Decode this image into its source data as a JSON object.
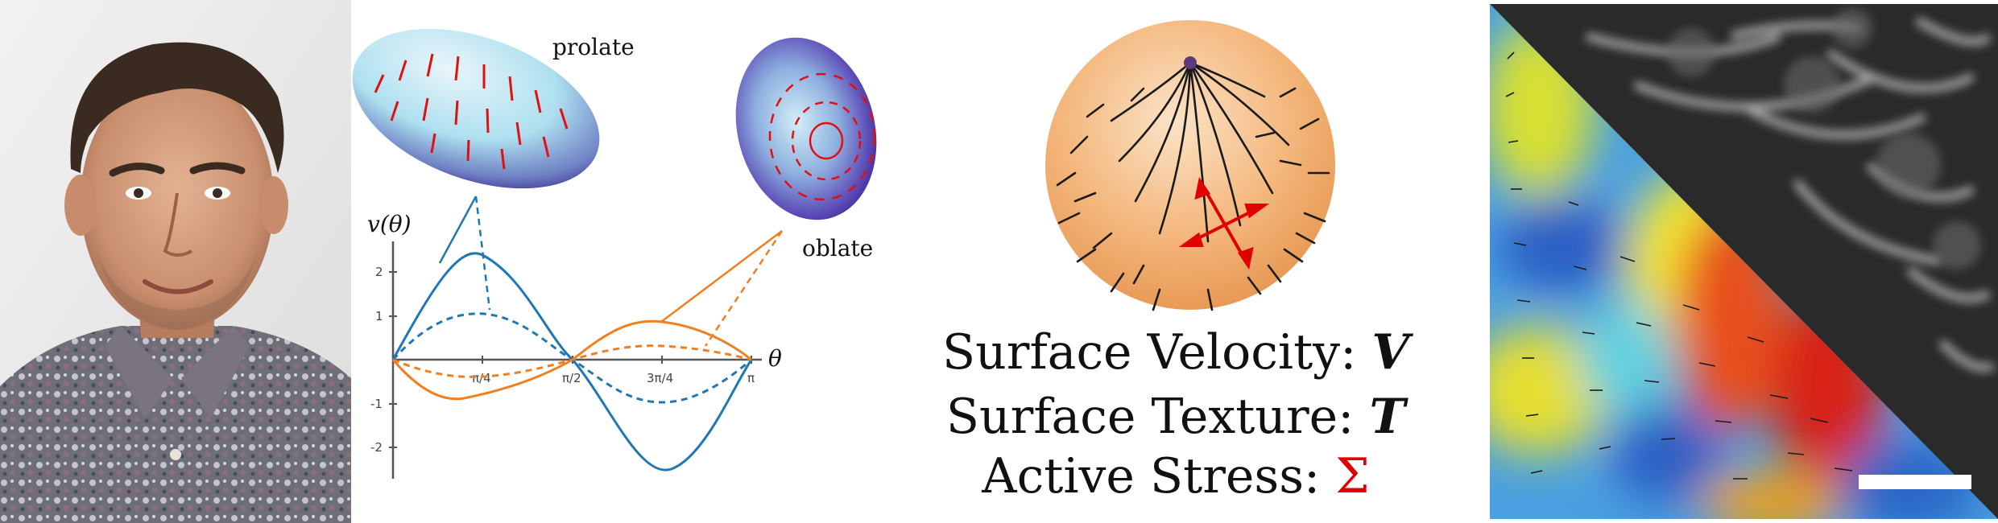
{
  "plot": {
    "label_prolate": "prolate",
    "label_oblate": "oblate",
    "y_axis_label": "v(θ)",
    "x_axis_label": "θ",
    "y_ticks": [
      "2",
      "1",
      "-1",
      "-2"
    ],
    "x_ticks": [
      "π/4",
      "π/2",
      "3π/4",
      "π"
    ],
    "colors": {
      "blue": "#1f77b4",
      "orange": "#f07f1e",
      "arrows": "#e01010"
    }
  },
  "sphere": {
    "line1_label": "Surface Velocity:",
    "line1_symbol": "V",
    "line2_label": "Surface Texture:",
    "line2_symbol": "T",
    "line3_label": "Active Stress:",
    "line3_symbol": "Σ",
    "colors": {
      "sphere": "#f3b57d",
      "stress": "#e00000"
    }
  },
  "heatmap": {
    "colors": {
      "blue": "#2a66c8",
      "red": "#d6201a",
      "yellow": "#e8e020",
      "scale_bar": "#ffffff"
    }
  }
}
